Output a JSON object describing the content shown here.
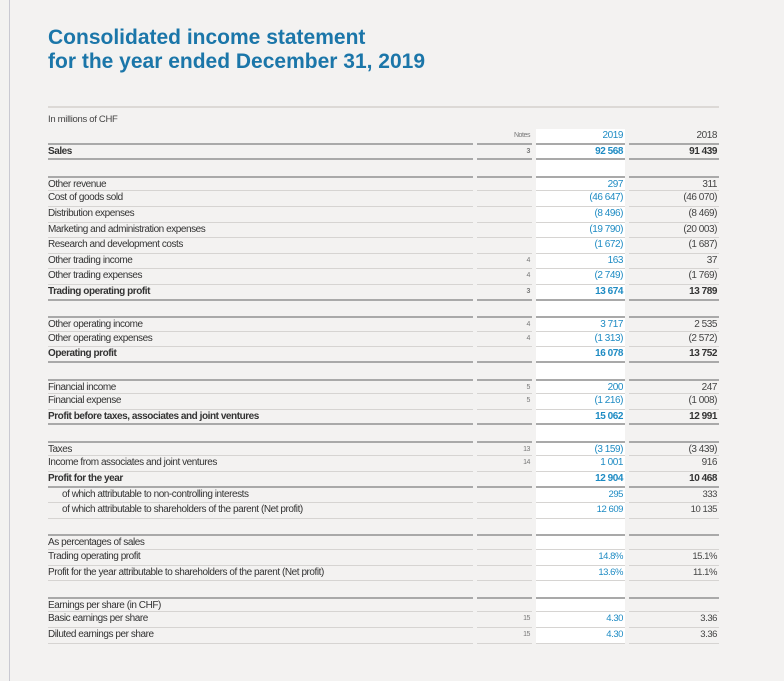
{
  "title_line1": "Consolidated income statement",
  "title_line2": "for the year ended December 31, 2019",
  "unit": "In millions of CHF",
  "colors": {
    "title": "#1b76a9",
    "current_year": "#1e8bc3"
  },
  "header": {
    "notes": "Notes",
    "y2019": "2019",
    "y2018": "2018"
  },
  "rows": [
    {
      "label": "Sales",
      "notes": "3",
      "y2019": "92 568",
      "y2018": "91 439",
      "style": "b"
    },
    {
      "style": "sp"
    },
    {
      "label": "Other revenue",
      "notes": "",
      "y2019": "297",
      "y2018": "311",
      "style": "first"
    },
    {
      "label": "Cost of goods sold",
      "notes": "",
      "y2019": "(46 647)",
      "y2018": "(46 070)"
    },
    {
      "label": "Distribution expenses",
      "notes": "",
      "y2019": "(8 496)",
      "y2018": "(8 469)"
    },
    {
      "label": "Marketing and administration expenses",
      "notes": "",
      "y2019": "(19 790)",
      "y2018": "(20 003)"
    },
    {
      "label": "Research and development costs",
      "notes": "",
      "y2019": "(1 672)",
      "y2018": "(1 687)"
    },
    {
      "label": "Other trading income",
      "notes": "4",
      "y2019": "163",
      "y2018": "37"
    },
    {
      "label": "Other trading expenses",
      "notes": "4",
      "y2019": "(2 749)",
      "y2018": "(1 769)"
    },
    {
      "label": "Trading operating profit",
      "notes": "3",
      "y2019": "13 674",
      "y2018": "13 789",
      "style": "b"
    },
    {
      "style": "sp"
    },
    {
      "label": "Other operating income",
      "notes": "4",
      "y2019": "3 717",
      "y2018": "2 535",
      "style": "first"
    },
    {
      "label": "Other operating expenses",
      "notes": "4",
      "y2019": "(1 313)",
      "y2018": "(2 572)"
    },
    {
      "label": "Operating profit",
      "notes": "",
      "y2019": "16 078",
      "y2018": "13 752",
      "style": "b"
    },
    {
      "style": "sp"
    },
    {
      "label": "Financial income",
      "notes": "5",
      "y2019": "200",
      "y2018": "247",
      "style": "first"
    },
    {
      "label": "Financial expense",
      "notes": "5",
      "y2019": "(1 216)",
      "y2018": "(1 008)"
    },
    {
      "label": "Profit before taxes, associates and joint ventures",
      "notes": "",
      "y2019": "15 062",
      "y2018": "12 991",
      "style": "b"
    },
    {
      "style": "sp"
    },
    {
      "label": "Taxes",
      "notes": "13",
      "y2019": "(3 159)",
      "y2018": "(3 439)",
      "style": "first"
    },
    {
      "label": "Income from associates and joint ventures",
      "notes": "14",
      "y2019": "1 001",
      "y2018": "916"
    },
    {
      "label": "Profit for the year",
      "notes": "",
      "y2019": "12 904",
      "y2018": "10 468",
      "style": "b"
    },
    {
      "label": "of which attributable to non-controlling interests",
      "notes": "",
      "y2019": "295",
      "y2018": "333",
      "style": "ind sub"
    },
    {
      "label": "of which attributable to shareholders of the parent (Net profit)",
      "notes": "",
      "y2019": "12 609",
      "y2018": "10 135",
      "style": "ind sub"
    },
    {
      "style": "sp"
    },
    {
      "label": "As percentages of sales",
      "notes": "",
      "y2019": "",
      "y2018": "",
      "style": "first"
    },
    {
      "label": "Trading operating profit",
      "notes": "",
      "y2019": "14.8%",
      "y2018": "15.1%",
      "style": "sub"
    },
    {
      "label": "Profit for the year attributable to shareholders of the parent (Net profit)",
      "notes": "",
      "y2019": "13.6%",
      "y2018": "11.1%",
      "style": "sub"
    },
    {
      "style": "sp"
    },
    {
      "label": "Earnings per share (in CHF)",
      "notes": "",
      "y2019": "",
      "y2018": "",
      "style": "first"
    },
    {
      "label": "Basic earnings per share",
      "notes": "15",
      "y2019": "4.30",
      "y2018": "3.36",
      "style": "sub"
    },
    {
      "label": "Diluted earnings per share",
      "notes": "15",
      "y2019": "4.30",
      "y2018": "3.36",
      "style": "sub"
    }
  ]
}
